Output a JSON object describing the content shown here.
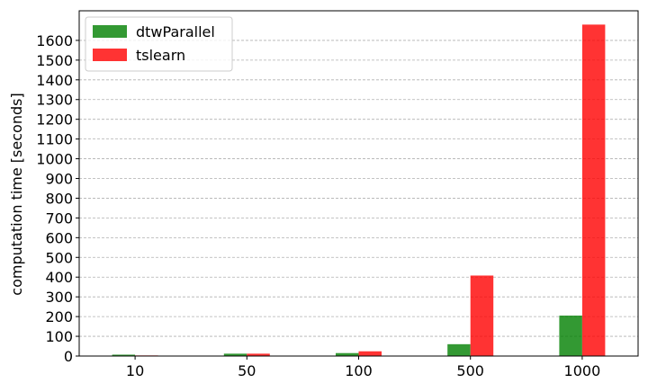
{
  "chart_data": {
    "type": "bar",
    "title": "",
    "xlabel": "",
    "ylabel": "computation time [seconds]",
    "categories": [
      "10",
      "50",
      "100",
      "500",
      "1000"
    ],
    "series": [
      {
        "name": "dtwParallel",
        "color": "#008000",
        "values": [
          7,
          12,
          15,
          60,
          205
        ]
      },
      {
        "name": "tslearn",
        "color": "#ff0000",
        "values": [
          3,
          12,
          24,
          408,
          1680
        ]
      }
    ],
    "ylim": [
      0,
      1750
    ],
    "yticks": [
      0,
      100,
      200,
      300,
      400,
      500,
      600,
      700,
      800,
      900,
      1000,
      1100,
      1200,
      1300,
      1400,
      1500,
      1600
    ],
    "grid": {
      "y": true,
      "style": "dashed"
    },
    "legend": {
      "position": "top-left"
    }
  }
}
